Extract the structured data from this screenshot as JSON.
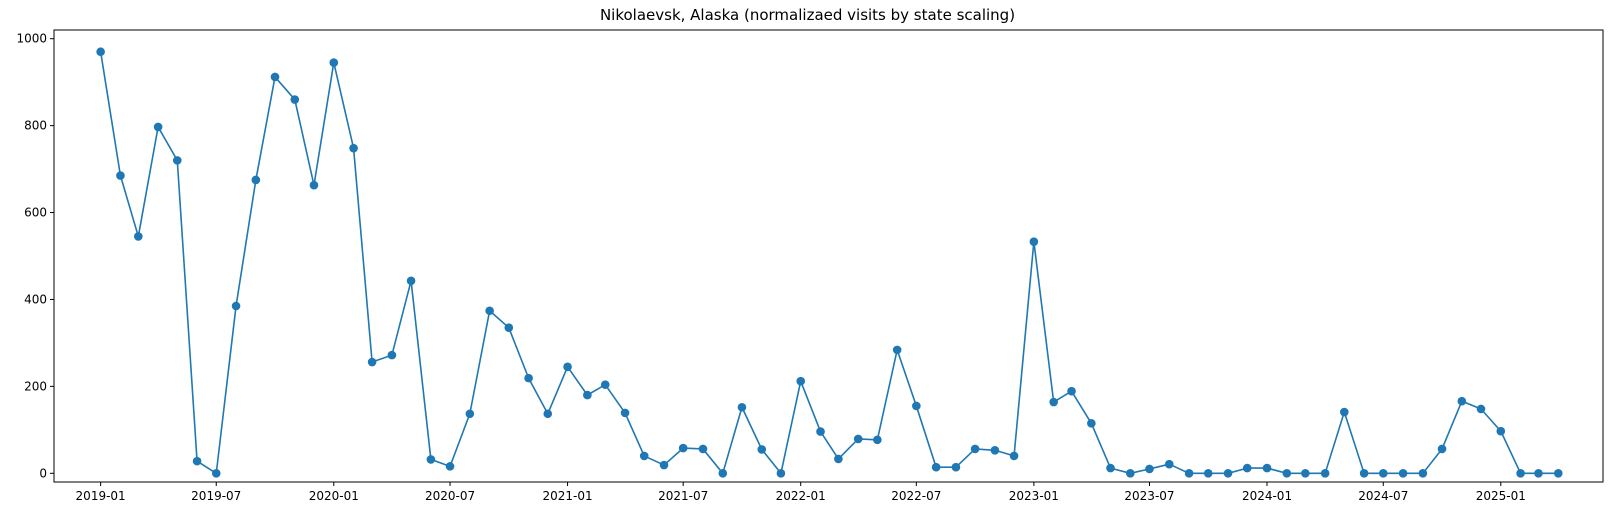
{
  "chart_data": {
    "type": "line",
    "title": "Nikolaevsk, Alaska (normalizaed visits by state scaling)",
    "xlabel": "",
    "ylabel": "",
    "ylim": [
      -20,
      1020
    ],
    "xlim": [
      "2018-10-20",
      "2025-06-10"
    ],
    "grid": false,
    "markers": true,
    "color": "#1f77b4",
    "x_ticks": [
      "2019-01",
      "2019-07",
      "2020-01",
      "2020-07",
      "2021-01",
      "2021-07",
      "2022-01",
      "2022-07",
      "2023-01",
      "2023-07",
      "2024-01",
      "2024-07",
      "2025-01"
    ],
    "y_ticks": [
      0,
      200,
      400,
      600,
      800,
      1000
    ],
    "series": [
      {
        "x": [
          "2019-01",
          "2019-02",
          "2019-03",
          "2019-04",
          "2019-05",
          "2019-06",
          "2019-07",
          "2019-08",
          "2019-09",
          "2019-10",
          "2019-11",
          "2019-12",
          "2020-01",
          "2020-02",
          "2020-03",
          "2020-04",
          "2020-05",
          "2020-06",
          "2020-07",
          "2020-08",
          "2020-09",
          "2020-10",
          "2020-11",
          "2020-12",
          "2021-01",
          "2021-02",
          "2021-03",
          "2021-04",
          "2021-05",
          "2021-06",
          "2021-07",
          "2021-08",
          "2021-09",
          "2021-10",
          "2021-11",
          "2021-12",
          "2022-01",
          "2022-02",
          "2022-03",
          "2022-04",
          "2022-05",
          "2022-06",
          "2022-07",
          "2022-08",
          "2022-09",
          "2022-10",
          "2022-11",
          "2022-12",
          "2023-01",
          "2023-02",
          "2023-03",
          "2023-04",
          "2023-05",
          "2023-06",
          "2023-07",
          "2023-08",
          "2023-09",
          "2023-10",
          "2023-11",
          "2023-12",
          "2024-01",
          "2024-02",
          "2024-03",
          "2024-04",
          "2024-05",
          "2024-06",
          "2024-07",
          "2024-08",
          "2024-09",
          "2024-10",
          "2024-11",
          "2024-12",
          "2025-01",
          "2025-02",
          "2025-03",
          "2025-04"
        ],
        "y": [
          970,
          685,
          545,
          797,
          720,
          28,
          0,
          385,
          675,
          912,
          860,
          663,
          945,
          748,
          256,
          272,
          443,
          32,
          16,
          137,
          374,
          335,
          219,
          137,
          245,
          180,
          204,
          139,
          40,
          19,
          58,
          56,
          0,
          152,
          55,
          0,
          212,
          96,
          33,
          79,
          77,
          284,
          155,
          14,
          14,
          56,
          53,
          40,
          533,
          164,
          189,
          115,
          12,
          0,
          10,
          21,
          0,
          0,
          0,
          12,
          12,
          0,
          0,
          0,
          141,
          0,
          0,
          0,
          0,
          56,
          166,
          148,
          97,
          0,
          0,
          0
        ]
      }
    ]
  }
}
